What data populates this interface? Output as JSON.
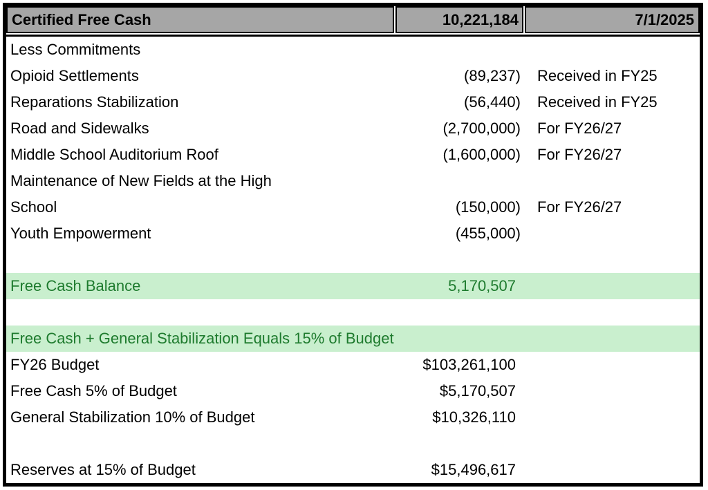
{
  "colors": {
    "header_bg": "#a6a6a6",
    "highlight_bg": "#c9efce",
    "highlight_text": "#1e7b2e",
    "border": "#000000"
  },
  "table": {
    "header": {
      "title": "Certified Free Cash",
      "amount": "10,221,184",
      "date": "7/1/2025"
    },
    "rows": [
      {
        "label": "Less Commitments",
        "value": "",
        "note": "",
        "style": "normal"
      },
      {
        "label": "Opioid Settlements",
        "value": "(89,237)",
        "note": "Received in FY25",
        "style": "normal"
      },
      {
        "label": "Reparations Stabilization",
        "value": "(56,440)",
        "note": "Received in FY25",
        "style": "normal"
      },
      {
        "label": "Road and Sidewalks",
        "value": "(2,700,000)",
        "note": "For FY26/27",
        "style": "normal"
      },
      {
        "label": "Middle School Auditorium Roof",
        "value": "(1,600,000)",
        "note": "For FY26/27",
        "style": "normal"
      },
      {
        "label_lines": [
          "Maintenance of New Fields at the High",
          "School"
        ],
        "value": "(150,000)",
        "note": "For FY26/27",
        "style": "normal"
      },
      {
        "label": "Youth Empowerment",
        "value": "(455,000)",
        "note": "",
        "style": "normal"
      },
      {
        "label": "",
        "value": "",
        "note": "",
        "style": "normal"
      },
      {
        "label": "Free Cash Balance",
        "value": "5,170,507",
        "note": "",
        "style": "highlight"
      },
      {
        "label": "",
        "value": "",
        "note": "",
        "style": "normal"
      },
      {
        "label": "Free Cash + General Stabilization Equals 15% of Budget",
        "value": "",
        "note": "",
        "style": "banner"
      },
      {
        "label": "FY26 Budget",
        "value": "$103,261,100",
        "note": "",
        "style": "normal"
      },
      {
        "label": "Free Cash 5% of Budget",
        "value": "$5,170,507",
        "note": "",
        "style": "normal"
      },
      {
        "label": "General Stabilization 10% of Budget",
        "value": "$10,326,110",
        "note": "",
        "style": "normal"
      },
      {
        "label": "",
        "value": "",
        "note": "",
        "style": "normal"
      },
      {
        "label": "Reserves at 15% of Budget",
        "value": "$15,496,617",
        "note": "",
        "style": "normal"
      }
    ]
  }
}
